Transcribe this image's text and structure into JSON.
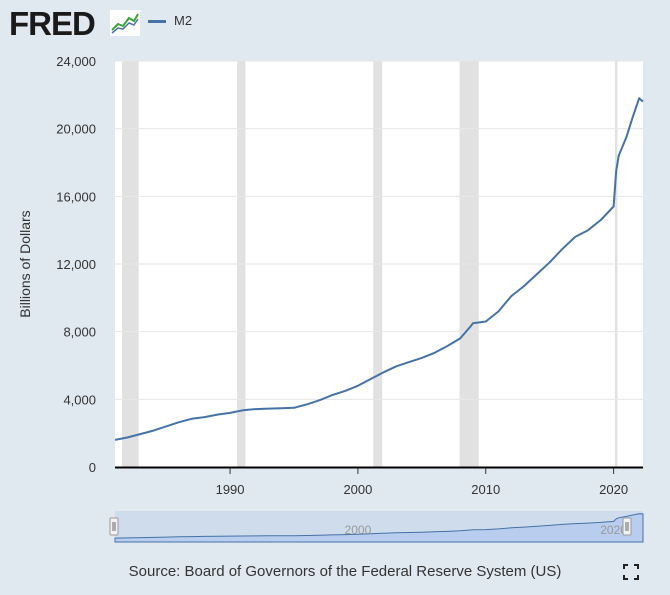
{
  "header": {
    "logo_text": "FRED",
    "series_label": "M2"
  },
  "source_text": "Source: Board of Governors of the Federal Reserve System (US)",
  "colors": {
    "background": "#e1e9f0",
    "plot_background": "#ffffff",
    "line": "#4572a7",
    "recession": "#e1e1e1",
    "navigator_fill": "#b9cdee"
  },
  "icons": {
    "fullscreen": "fullscreen-icon",
    "logo_graph": "fred-graph-icon"
  },
  "chart_data": {
    "type": "line",
    "title": "",
    "xlabel": "",
    "ylabel": "Billions of Dollars",
    "xlim": [
      1981.0,
      2022.3
    ],
    "ylim": [
      0,
      24000
    ],
    "y_ticks": [
      0,
      4000,
      8000,
      12000,
      16000,
      20000,
      24000
    ],
    "y_tick_labels": [
      "0",
      "4,000",
      "8,000",
      "12,000",
      "16,000",
      "20,000",
      "24,000"
    ],
    "x_ticks": [
      1990,
      2000,
      2010,
      2020
    ],
    "x_tick_labels": [
      "1990",
      "2000",
      "2010",
      "2020"
    ],
    "grid": true,
    "legend": "top-left",
    "recessions": [
      [
        1981.55,
        1982.85
      ],
      [
        1990.55,
        1991.2
      ],
      [
        2001.2,
        2001.9
      ],
      [
        2007.95,
        2009.45
      ],
      [
        2020.1,
        2020.3
      ]
    ],
    "series": [
      {
        "name": "M2",
        "x": [
          1981.0,
          1982.0,
          1983.0,
          1984.0,
          1985.0,
          1986.0,
          1987.0,
          1988.0,
          1989.0,
          1990.0,
          1991.0,
          1992.0,
          1993.0,
          1994.0,
          1995.0,
          1996.0,
          1997.0,
          1998.0,
          1999.0,
          2000.0,
          2001.0,
          2002.0,
          2003.0,
          2004.0,
          2005.0,
          2006.0,
          2007.0,
          2008.0,
          2008.8,
          2009.0,
          2010.0,
          2011.0,
          2012.0,
          2013.0,
          2014.0,
          2015.0,
          2016.0,
          2017.0,
          2018.0,
          2019.0,
          2020.0,
          2020.2,
          2020.4,
          2021.0,
          2021.5,
          2022.0,
          2022.3
        ],
        "values": [
          1600,
          1750,
          1950,
          2150,
          2400,
          2650,
          2850,
          2950,
          3100,
          3200,
          3350,
          3420,
          3450,
          3470,
          3500,
          3700,
          3950,
          4250,
          4500,
          4800,
          5200,
          5600,
          5950,
          6200,
          6450,
          6750,
          7150,
          7600,
          8300,
          8500,
          8600,
          9200,
          10100,
          10700,
          11400,
          12100,
          12900,
          13600,
          14000,
          14600,
          15400,
          17500,
          18400,
          19500,
          20700,
          21800,
          21600
        ]
      }
    ],
    "navigator": {
      "x_tick_labels": [
        "2000",
        "2020"
      ]
    }
  }
}
